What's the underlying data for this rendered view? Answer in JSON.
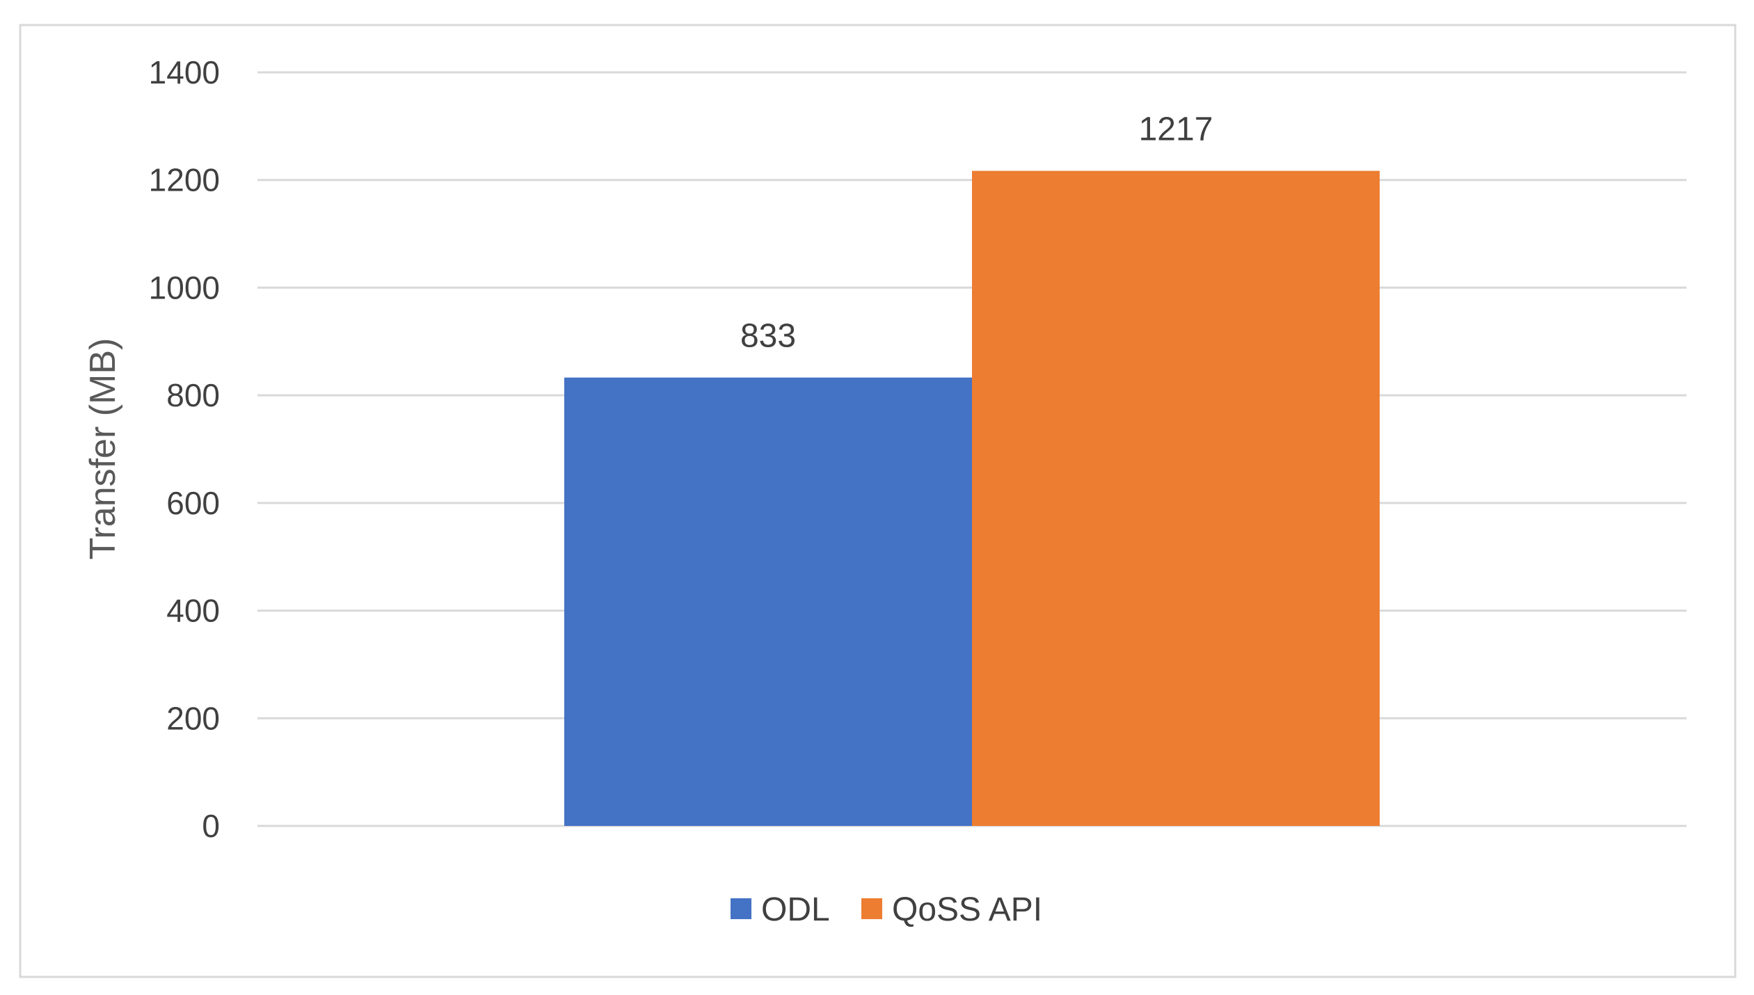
{
  "chart_data": {
    "type": "bar",
    "categories": [
      ""
    ],
    "series": [
      {
        "name": "ODL",
        "values": [
          833
        ],
        "color": "#4472C4"
      },
      {
        "name": "QoSS API",
        "values": [
          1217
        ],
        "color": "#ED7D31"
      }
    ],
    "title": "",
    "xlabel": "",
    "ylabel": "Transfer (MB)",
    "ylim": [
      0,
      1400
    ],
    "yticks": [
      0,
      200,
      400,
      600,
      800,
      1000,
      1200,
      1400
    ],
    "data_labels": [
      "833",
      "1217"
    ],
    "grid": true,
    "legend": "bottom"
  }
}
